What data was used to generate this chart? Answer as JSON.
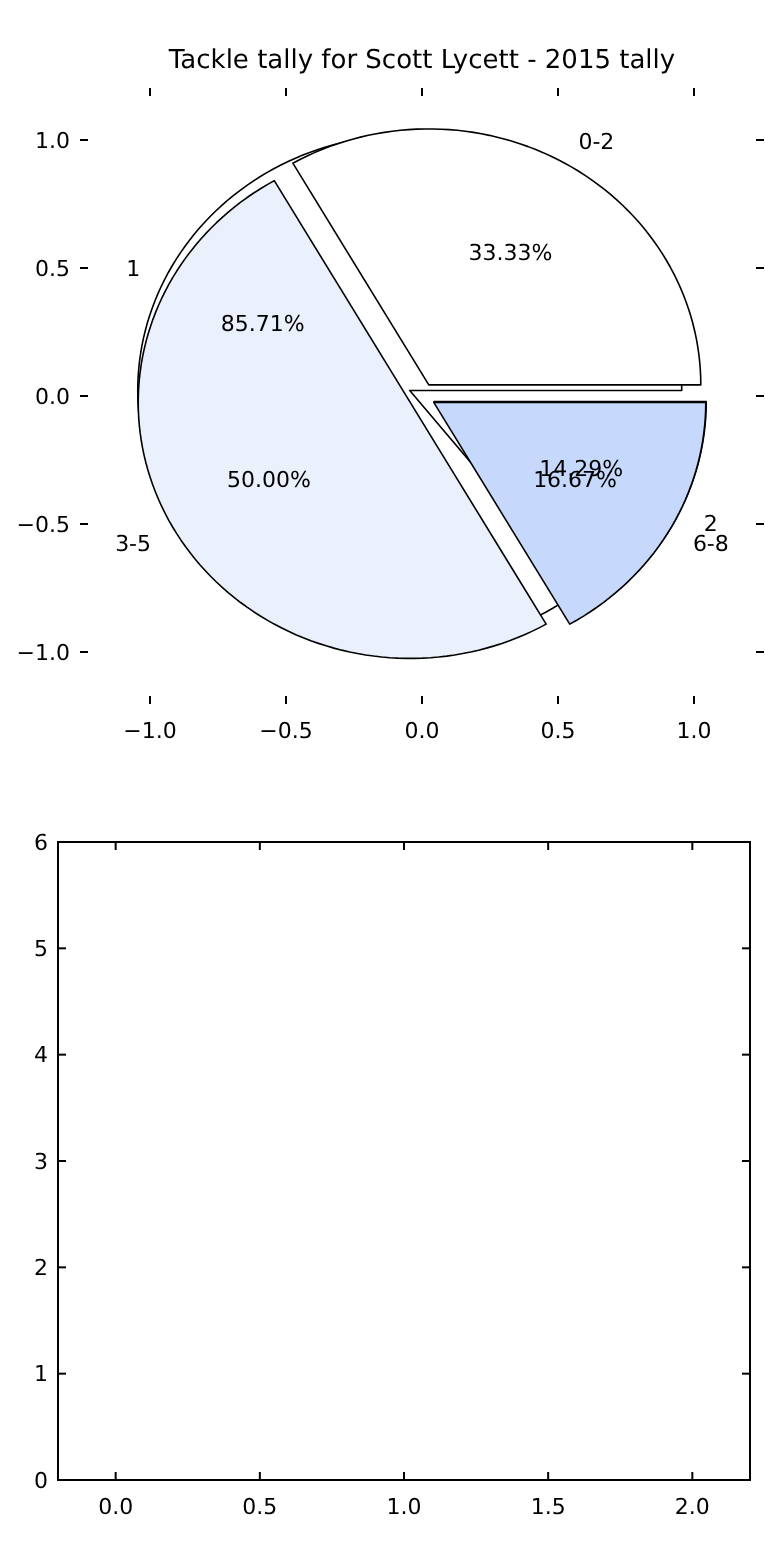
{
  "chart_data": [
    {
      "type": "scatter",
      "title": "Tackle tally for Scott Lycett - 2015 tally",
      "xlim": [
        -1,
        1
      ],
      "ylim": [
        -1,
        1
      ],
      "xticks": [
        {
          "value": -1,
          "label": "−1.0"
        },
        {
          "value": -0.5,
          "label": "−0.5"
        },
        {
          "value": 0,
          "label": "0.0"
        },
        {
          "value": 0.5,
          "label": "0.5"
        },
        {
          "value": 1,
          "label": "1.0"
        }
      ],
      "yticks": [
        {
          "value": -1,
          "label": "−1.0"
        },
        {
          "value": -0.5,
          "label": "−0.5"
        },
        {
          "value": 0,
          "label": "0.0"
        },
        {
          "value": 0.5,
          "label": "0.5"
        },
        {
          "value": 1,
          "label": "1.0"
        }
      ]
    },
    {
      "type": "pie",
      "categories": [
        "0-2",
        "3-5",
        "6-8"
      ],
      "values": [
        33.33,
        50.0,
        16.67
      ],
      "value_labels": [
        "33.33%",
        "50.00%",
        "16.67%"
      ],
      "colors": [
        "#ffffff",
        "#eaf1fd",
        "#c6d9fd"
      ]
    },
    {
      "type": "pie",
      "categories": [
        "1",
        "2"
      ],
      "values": [
        85.71,
        14.29
      ],
      "value_labels": [
        "85.71%",
        "14.29%"
      ],
      "colors": [
        "#ffffff",
        "#eaf1fd"
      ]
    },
    {
      "type": "scatter",
      "xlim": [
        -0.2,
        2.2
      ],
      "ylim": [
        0,
        6
      ],
      "xticks": [
        {
          "value": 0,
          "label": "0.0"
        },
        {
          "value": 0.5,
          "label": "0.5"
        },
        {
          "value": 1,
          "label": "1.0"
        },
        {
          "value": 1.5,
          "label": "1.5"
        },
        {
          "value": 2,
          "label": "2.0"
        }
      ],
      "yticks": [
        0,
        1,
        2,
        3,
        4,
        5,
        6
      ]
    }
  ]
}
